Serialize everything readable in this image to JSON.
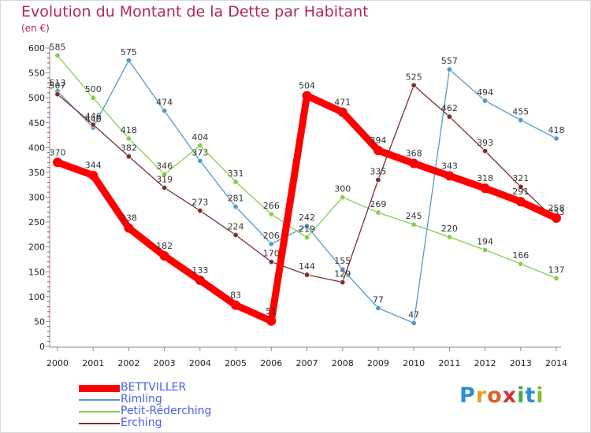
{
  "page": {
    "title": "Evolution du Montant de la Dette par Habitant",
    "unit": "(en €)",
    "brand": "Proxiti",
    "brand_colors": [
      "#2b8fd6",
      "#e8a020",
      "#e0602a",
      "#d7322e",
      "#49a83c",
      "#2b8fd6",
      "#8db833"
    ]
  },
  "chart_data": {
    "type": "line",
    "title": "Evolution du Montant de la Dette par Habitant",
    "ylabel": "(en €)",
    "xlabel": "",
    "x": [
      "2000",
      "2001",
      "2002",
      "2003",
      "2004",
      "2005",
      "2006",
      "2007",
      "2008",
      "2009",
      "2010",
      "2011",
      "2012",
      "2013",
      "2014"
    ],
    "ylim": [
      0,
      600
    ],
    "yticks": [
      0,
      50,
      100,
      150,
      200,
      250,
      300,
      350,
      400,
      450,
      500,
      550,
      600
    ],
    "grid": false,
    "legend_position": "bottom-left",
    "series": [
      {
        "name": "BETTVILLER",
        "color": "#ff0000",
        "emphasis": true,
        "values": [
          370,
          344,
          238,
          182,
          133,
          83,
          51,
          504,
          471,
          394,
          368,
          343,
          318,
          291,
          258
        ]
      },
      {
        "name": "Rimling",
        "color": "#5599cc",
        "emphasis": false,
        "values": [
          513,
          440,
          575,
          474,
          373,
          281,
          206,
          242,
          155,
          77,
          47,
          557,
          494,
          455,
          418
        ]
      },
      {
        "name": "Petit-Réderching",
        "color": "#88cc55",
        "emphasis": false,
        "values": [
          585,
          500,
          418,
          346,
          404,
          331,
          266,
          219,
          300,
          269,
          245,
          220,
          194,
          166,
          137
        ]
      },
      {
        "name": "Erching",
        "color": "#7a2f2f",
        "emphasis": false,
        "values": [
          507,
          446,
          382,
          319,
          273,
          224,
          170,
          144,
          129,
          335,
          525,
          462,
          393,
          321,
          253
        ]
      }
    ]
  }
}
